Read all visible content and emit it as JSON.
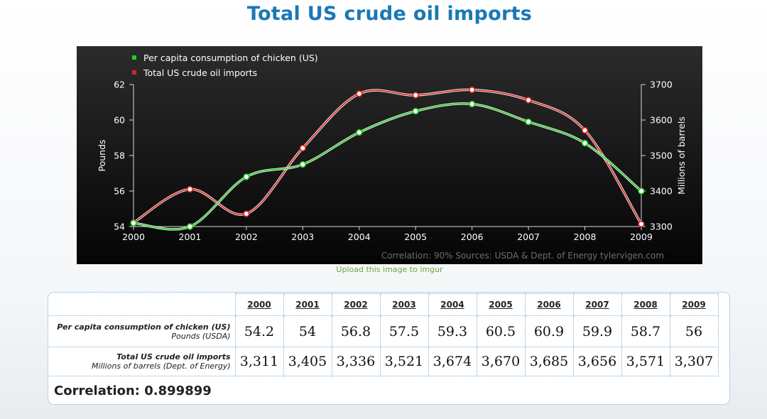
{
  "title": "Total US crude oil imports",
  "upload_link": "Upload this image to imgur",
  "correlation_text": "Correlation: 0.899899",
  "chart_data": {
    "type": "line",
    "title": "Total US crude oil imports",
    "x": [
      "2000",
      "2001",
      "2002",
      "2003",
      "2004",
      "2005",
      "2006",
      "2007",
      "2008",
      "2009"
    ],
    "series": [
      {
        "name": "Per capita consumption of chicken (US)",
        "axis": "left",
        "color": "#22cc22",
        "values": [
          54.2,
          54,
          56.8,
          57.5,
          59.3,
          60.5,
          60.9,
          59.9,
          58.7,
          56
        ]
      },
      {
        "name": "Total US crude oil imports",
        "axis": "right",
        "color": "#dd2222",
        "values": [
          3311,
          3405,
          3336,
          3521,
          3674,
          3670,
          3685,
          3656,
          3571,
          3307
        ]
      }
    ],
    "ylabel_left": "Pounds",
    "ylabel_right": "Millions of barrels",
    "ylim_left": [
      54,
      62
    ],
    "ylim_right": [
      3300,
      3700
    ],
    "yticks_left": [
      "54",
      "56",
      "58",
      "60",
      "62"
    ],
    "yticks_right": [
      "3300",
      "3400",
      "3500",
      "3600",
      "3700"
    ],
    "footer": "Correlation: 90%    Sources: USDA & Dept. of Energy   tylervigen.com",
    "legend": "top-left",
    "grid": false
  },
  "table": {
    "years": [
      "2000",
      "2001",
      "2002",
      "2003",
      "2004",
      "2005",
      "2006",
      "2007",
      "2008",
      "2009"
    ],
    "rows": [
      {
        "title": "Per capita consumption of chicken (US)",
        "subtitle": "Pounds (USDA)",
        "values": [
          "54.2",
          "54",
          "56.8",
          "57.5",
          "59.3",
          "60.5",
          "60.9",
          "59.9",
          "58.7",
          "56"
        ]
      },
      {
        "title": "Total US crude oil imports",
        "subtitle": "Millions of barrels (Dept. of Energy)",
        "values": [
          "3,311",
          "3,405",
          "3,336",
          "3,521",
          "3,674",
          "3,670",
          "3,685",
          "3,656",
          "3,571",
          "3,307"
        ]
      }
    ]
  }
}
